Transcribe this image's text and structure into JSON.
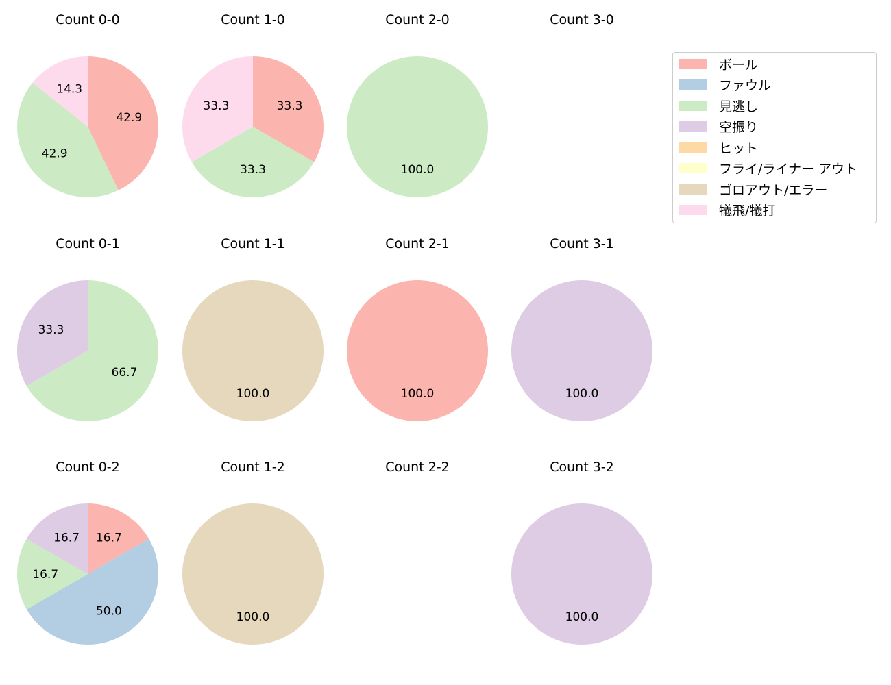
{
  "chart_data": {
    "type": "pie",
    "layout": {
      "rows": 3,
      "cols": 4,
      "start_angle": 90,
      "direction": "clockwise",
      "autopct": "%.1f"
    },
    "legend": {
      "position": "upper right",
      "entries": [
        {
          "label": "ボール",
          "color": "#fbb4ae"
        },
        {
          "label": "ファウル",
          "color": "#b3cde3"
        },
        {
          "label": "見逃し",
          "color": "#ccebc5"
        },
        {
          "label": "空振り",
          "color": "#decbe4"
        },
        {
          "label": "ヒット",
          "color": "#fed9a6"
        },
        {
          "label": "フライ/ライナー アウト",
          "color": "#ffffcc"
        },
        {
          "label": "ゴロアウト/エラー",
          "color": "#e5d8bd"
        },
        {
          "label": "犠飛/犠打",
          "color": "#fddaec"
        }
      ]
    },
    "charts": [
      {
        "title": "Count 0-0",
        "row": 0,
        "col": 0,
        "slices": [
          {
            "label": "ボール",
            "value": 42.9
          },
          {
            "label": "見逃し",
            "value": 42.9
          },
          {
            "label": "犠飛/犠打",
            "value": 14.3
          }
        ]
      },
      {
        "title": "Count 1-0",
        "row": 0,
        "col": 1,
        "slices": [
          {
            "label": "ボール",
            "value": 33.3
          },
          {
            "label": "見逃し",
            "value": 33.3
          },
          {
            "label": "犠飛/犠打",
            "value": 33.3
          }
        ]
      },
      {
        "title": "Count 2-0",
        "row": 0,
        "col": 2,
        "slices": [
          {
            "label": "見逃し",
            "value": 100.0
          }
        ]
      },
      {
        "title": "Count 3-0",
        "row": 0,
        "col": 3,
        "slices": []
      },
      {
        "title": "Count 0-1",
        "row": 1,
        "col": 0,
        "slices": [
          {
            "label": "見逃し",
            "value": 66.7
          },
          {
            "label": "空振り",
            "value": 33.3
          }
        ]
      },
      {
        "title": "Count 1-1",
        "row": 1,
        "col": 1,
        "slices": [
          {
            "label": "ゴロアウト/エラー",
            "value": 100.0
          }
        ]
      },
      {
        "title": "Count 2-1",
        "row": 1,
        "col": 2,
        "slices": [
          {
            "label": "ボール",
            "value": 100.0
          }
        ]
      },
      {
        "title": "Count 3-1",
        "row": 1,
        "col": 3,
        "slices": [
          {
            "label": "空振り",
            "value": 100.0
          }
        ]
      },
      {
        "title": "Count 0-2",
        "row": 2,
        "col": 0,
        "slices": [
          {
            "label": "ボール",
            "value": 16.7
          },
          {
            "label": "ファウル",
            "value": 50.0
          },
          {
            "label": "見逃し",
            "value": 16.7
          },
          {
            "label": "空振り",
            "value": 16.7
          }
        ]
      },
      {
        "title": "Count 1-2",
        "row": 2,
        "col": 1,
        "slices": [
          {
            "label": "ゴロアウト/エラー",
            "value": 100.0
          }
        ]
      },
      {
        "title": "Count 2-2",
        "row": 2,
        "col": 2,
        "slices": []
      },
      {
        "title": "Count 3-2",
        "row": 2,
        "col": 3,
        "slices": [
          {
            "label": "空振り",
            "value": 100.0
          }
        ]
      }
    ]
  }
}
